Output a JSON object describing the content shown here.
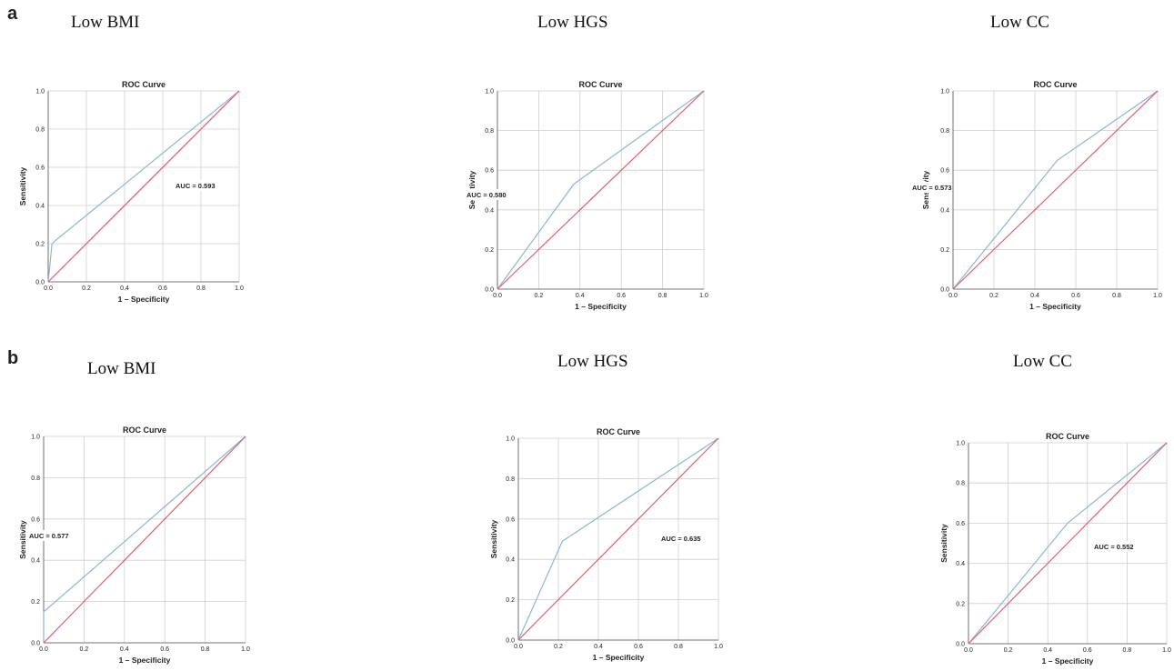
{
  "rows": [
    {
      "label": "a"
    },
    {
      "label": "b"
    }
  ],
  "chart_data": [
    {
      "type": "line",
      "panel_title": "Low BMI",
      "title": "ROC Curve",
      "xlabel": "1 – Specificity",
      "ylabel": "Sensitivity",
      "xlim": [
        0,
        1
      ],
      "ylim": [
        0,
        1
      ],
      "ticks": [
        "0.0",
        "0.2",
        "0.4",
        "0.6",
        "0.8",
        "1.0"
      ],
      "grid": true,
      "annotation": "AUC = 0.593",
      "series": [
        {
          "name": "ROC",
          "x": [
            0,
            0.02,
            0.03,
            1
          ],
          "y": [
            0,
            0.2,
            0.21,
            1
          ]
        },
        {
          "name": "Reference",
          "x": [
            0,
            1
          ],
          "y": [
            0,
            1
          ]
        }
      ]
    },
    {
      "type": "line",
      "panel_title": "Low HGS",
      "title": "ROC Curve",
      "xlabel": "1 – Specificity",
      "ylabel": "Sensitivity",
      "xlim": [
        0,
        1
      ],
      "ylim": [
        0,
        1
      ],
      "ticks": [
        "0.0",
        "0.2",
        "0.4",
        "0.6",
        "0.8",
        "1.0"
      ],
      "grid": true,
      "annotation": "AUC = 0.580",
      "series": [
        {
          "name": "ROC",
          "x": [
            0,
            0.37,
            1
          ],
          "y": [
            0,
            0.53,
            1
          ]
        },
        {
          "name": "Reference",
          "x": [
            0,
            1
          ],
          "y": [
            0,
            1
          ]
        }
      ]
    },
    {
      "type": "line",
      "panel_title": "Low CC",
      "title": "ROC Curve",
      "xlabel": "1 – Specificity",
      "ylabel": "Sensitivity",
      "xlim": [
        0,
        1
      ],
      "ylim": [
        0,
        1
      ],
      "ticks": [
        "0.0",
        "0.2",
        "0.4",
        "0.6",
        "0.8",
        "1.0"
      ],
      "grid": true,
      "annotation": "AUC = 0.573",
      "series": [
        {
          "name": "ROC",
          "x": [
            0,
            0.51,
            1
          ],
          "y": [
            0,
            0.65,
            1
          ]
        },
        {
          "name": "Reference",
          "x": [
            0,
            1
          ],
          "y": [
            0,
            1
          ]
        }
      ]
    },
    {
      "type": "line",
      "panel_title": "Low BMI",
      "title": "ROC Curve",
      "xlabel": "1 – Specificity",
      "ylabel": "Sensitivity",
      "xlim": [
        0,
        1
      ],
      "ylim": [
        0,
        1
      ],
      "ticks": [
        "0.0",
        "0.2",
        "0.4",
        "0.6",
        "0.8",
        "1.0"
      ],
      "grid": true,
      "annotation": "AUC = 0.577",
      "series": [
        {
          "name": "ROC",
          "x": [
            0,
            0,
            1
          ],
          "y": [
            0,
            0.15,
            1
          ]
        },
        {
          "name": "Reference",
          "x": [
            0,
            1
          ],
          "y": [
            0,
            1
          ]
        }
      ]
    },
    {
      "type": "line",
      "panel_title": "Low HGS",
      "title": "ROC Curve",
      "xlabel": "1 – Specificity",
      "ylabel": "Sensitivity",
      "xlim": [
        0,
        1
      ],
      "ylim": [
        0,
        1
      ],
      "ticks": [
        "0.0",
        "0.2",
        "0.4",
        "0.6",
        "0.8",
        "1.0"
      ],
      "grid": true,
      "annotation": "AUC = 0.635",
      "series": [
        {
          "name": "ROC",
          "x": [
            0,
            0.22,
            1
          ],
          "y": [
            0,
            0.49,
            1
          ]
        },
        {
          "name": "Reference",
          "x": [
            0,
            1
          ],
          "y": [
            0,
            1
          ]
        }
      ]
    },
    {
      "type": "line",
      "panel_title": "Low CC",
      "title": "ROC Curve",
      "xlabel": "1 – Specificity",
      "ylabel": "Sensitivity",
      "xlim": [
        0,
        1
      ],
      "ylim": [
        0,
        1
      ],
      "ticks": [
        "0.0",
        "0.2",
        "0.4",
        "0.6",
        "0.8",
        "1.0"
      ],
      "grid": true,
      "annotation": "AUC = 0.552",
      "series": [
        {
          "name": "ROC",
          "x": [
            0,
            0.5,
            1
          ],
          "y": [
            0,
            0.6,
            1
          ]
        },
        {
          "name": "Reference",
          "x": [
            0,
            1
          ],
          "y": [
            0,
            1
          ]
        }
      ]
    }
  ]
}
